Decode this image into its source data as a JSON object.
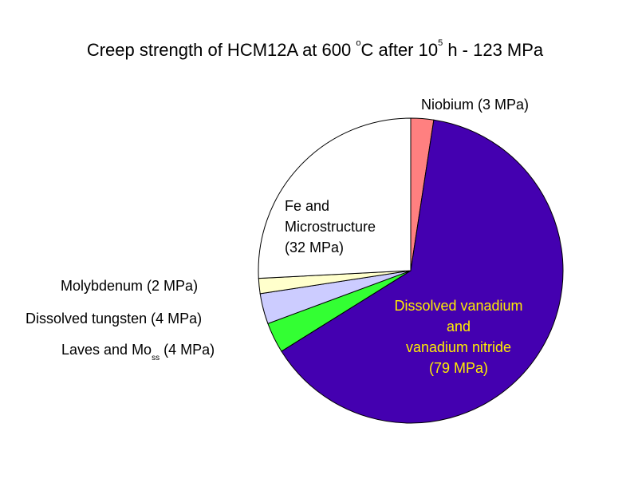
{
  "title": {
    "prefix": "Creep strength of HCM12A at 600 ",
    "degree": "o",
    "middle": "C after 10",
    "exponent": "5",
    "suffix": " h -  123 MPa"
  },
  "chart_data": {
    "type": "pie",
    "total_mpa": 123,
    "slices": [
      {
        "name": "Niobium",
        "value": 3,
        "color": "#ff8080"
      },
      {
        "name": "Dissolved vanadium and vanadium nitride",
        "value": 79,
        "color": "#4400b0"
      },
      {
        "name": "Laves and Moss",
        "value": 4,
        "color": "#33ff33"
      },
      {
        "name": "Dissolved tungsten",
        "value": 4,
        "color": "#ccccff"
      },
      {
        "name": "Molybdenum",
        "value": 2,
        "color": "#ffffcc"
      },
      {
        "name": "Fe and Microstructure",
        "value": 32,
        "color": "#ffffff"
      }
    ],
    "label_colors": {
      "default": "#000000",
      "highlight": "#ffee00"
    }
  },
  "labels": {
    "niobium": "Niobium (3 MPa)",
    "fe_line1": "Fe and",
    "fe_line2": "Microstructure",
    "fe_line3": "(32 MPa)",
    "molybdenum": "Molybdenum (2 MPa)",
    "tungsten": "Dissolved tungsten (4 MPa)",
    "laves_main": "Laves and Mo",
    "laves_sub": "ss",
    "laves_tail": " (4 MPa)",
    "vanadium_line1": "Dissolved vanadium",
    "vanadium_line2": "and",
    "vanadium_line3": "vanadium nitride",
    "vanadium_line4": "(79 MPa)"
  }
}
